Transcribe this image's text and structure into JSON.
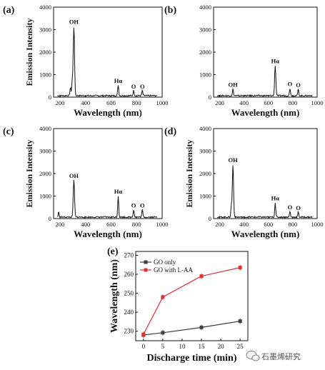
{
  "chart_data": [
    {
      "panel": "(a)",
      "type": "line",
      "xlabel": "Wavelength (nm)",
      "ylabel": "Emission Intensity",
      "xlim": [
        150,
        1000
      ],
      "ylim": [
        0,
        4000
      ],
      "xticks": [
        200,
        400,
        600,
        800,
        1000
      ],
      "yticks": [
        0,
        1000,
        2000,
        3000,
        4000
      ],
      "peaks": [
        {
          "x": 282,
          "y": 350,
          "label": ""
        },
        {
          "x": 296,
          "y": 650,
          "label": ""
        },
        {
          "x": 309,
          "y": 3100,
          "label": "OH"
        },
        {
          "x": 656,
          "y": 480,
          "label": "Hα"
        },
        {
          "x": 777,
          "y": 230,
          "label": "O"
        },
        {
          "x": 845,
          "y": 220,
          "label": "O"
        }
      ]
    },
    {
      "panel": "(b)",
      "type": "line",
      "xlabel": "Wavelength (nm)",
      "ylabel": "",
      "xlim": [
        150,
        1000
      ],
      "ylim": [
        0,
        4000
      ],
      "xticks": [
        200,
        400,
        600,
        800,
        1000
      ],
      "yticks": [
        0,
        1000,
        2000,
        3000,
        4000
      ],
      "peaks": [
        {
          "x": 309,
          "y": 300,
          "label": "OH"
        },
        {
          "x": 656,
          "y": 1350,
          "label": "Hα"
        },
        {
          "x": 777,
          "y": 330,
          "label": "O"
        },
        {
          "x": 845,
          "y": 280,
          "label": "O"
        }
      ]
    },
    {
      "panel": "(c)",
      "type": "line",
      "xlabel": "Wavelength (nm)",
      "ylabel": "Emission Intensity",
      "xlim": [
        150,
        1000
      ],
      "ylim": [
        0,
        4000
      ],
      "xticks": [
        200,
        400,
        600,
        800,
        1000
      ],
      "yticks": [
        0,
        1000,
        2000,
        3000,
        4000
      ],
      "peaks": [
        {
          "x": 190,
          "y": 220,
          "label": ""
        },
        {
          "x": 309,
          "y": 1650,
          "label": "OH"
        },
        {
          "x": 656,
          "y": 950,
          "label": "Hα"
        },
        {
          "x": 777,
          "y": 330,
          "label": "O"
        },
        {
          "x": 845,
          "y": 330,
          "label": "O"
        }
      ]
    },
    {
      "panel": "(d)",
      "type": "line",
      "xlabel": "Wavelength (nm)",
      "ylabel": "Emission Intensity",
      "xlim": [
        150,
        1000
      ],
      "ylim": [
        0,
        4000
      ],
      "xticks": [
        200,
        400,
        600,
        800,
        1000
      ],
      "yticks": [
        0,
        1000,
        2000,
        3000,
        4000
      ],
      "peaks": [
        {
          "x": 296,
          "y": 500,
          "label": ""
        },
        {
          "x": 309,
          "y": 2350,
          "label": "OH"
        },
        {
          "x": 656,
          "y": 650,
          "label": "Hα"
        },
        {
          "x": 777,
          "y": 250,
          "label": "O"
        },
        {
          "x": 845,
          "y": 220,
          "label": "O"
        }
      ]
    },
    {
      "panel": "(e)",
      "type": "line",
      "xlabel": "Discharge time (min)",
      "ylabel": "Wavelength (nm)",
      "xlim": [
        -2,
        27
      ],
      "ylim": [
        225,
        272
      ],
      "xticks": [
        0,
        5,
        10,
        15,
        20,
        25
      ],
      "yticks": [
        230,
        240,
        250,
        260,
        270
      ],
      "legend_position": "top-left",
      "series": [
        {
          "name": "GO only",
          "color": "#404040",
          "marker": "square",
          "x": [
            0,
            5,
            15,
            25
          ],
          "y": [
            228.0,
            229.2,
            232.0,
            235.3
          ]
        },
        {
          "name": "GO with L-AA",
          "color": "#e03030",
          "marker": "square",
          "x": [
            0,
            5,
            15,
            25
          ],
          "y": [
            228.3,
            248.0,
            259.0,
            263.5
          ]
        }
      ]
    }
  ],
  "watermark": {
    "text": "石墨烯研究",
    "icon": "wechat-icon"
  }
}
